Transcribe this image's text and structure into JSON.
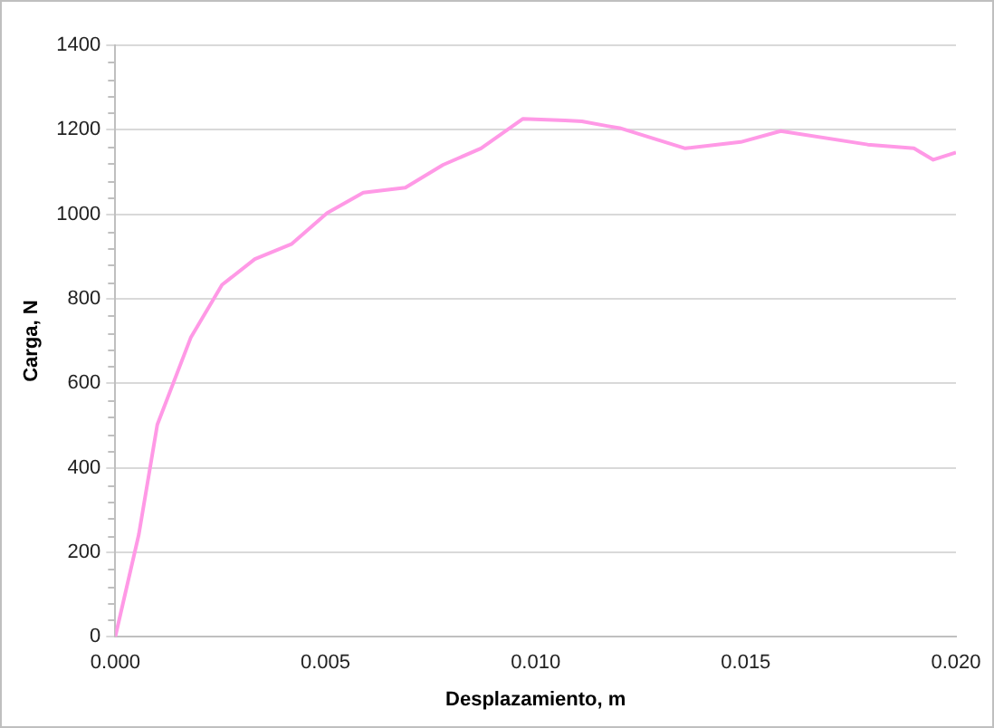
{
  "chart_data": {
    "type": "line",
    "xlabel": "Desplazamiento, m",
    "ylabel": "Carga, N",
    "x": [
      0,
      0.00056,
      0.001,
      0.0018,
      0.00254,
      0.00332,
      0.0042,
      0.00504,
      0.0059,
      0.0069,
      0.0078,
      0.0087,
      0.0097,
      0.0107,
      0.0111,
      0.0117,
      0.012,
      0.01356,
      0.01488,
      0.01583,
      0.0179,
      0.019,
      0.01946,
      0.02
    ],
    "series": [
      {
        "color": "#ff99e6",
        "values": [
          0,
          242,
          502,
          709,
          833,
          894,
          930,
          1003,
          1051,
          1063,
          1117,
          1156,
          1226,
          1222,
          1220,
          1209,
          1204,
          1156,
          1171,
          1197,
          1165,
          1156,
          1129,
          1146
        ]
      }
    ],
    "xlim": [
      0,
      0.02
    ],
    "xticks": [
      {
        "value": 0,
        "label": "0.000"
      },
      {
        "value": 0.005,
        "label": "0.005"
      },
      {
        "value": 0.01,
        "label": "0.010"
      },
      {
        "value": 0.015,
        "label": "0.015"
      },
      {
        "value": 0.02,
        "label": "0.020"
      }
    ],
    "ylim": [
      0,
      1400
    ],
    "yticks": [
      0,
      200,
      400,
      600,
      800,
      1000,
      1200,
      1400
    ],
    "grid": "y",
    "legend": false,
    "marker": "none",
    "line_style": "solid"
  }
}
